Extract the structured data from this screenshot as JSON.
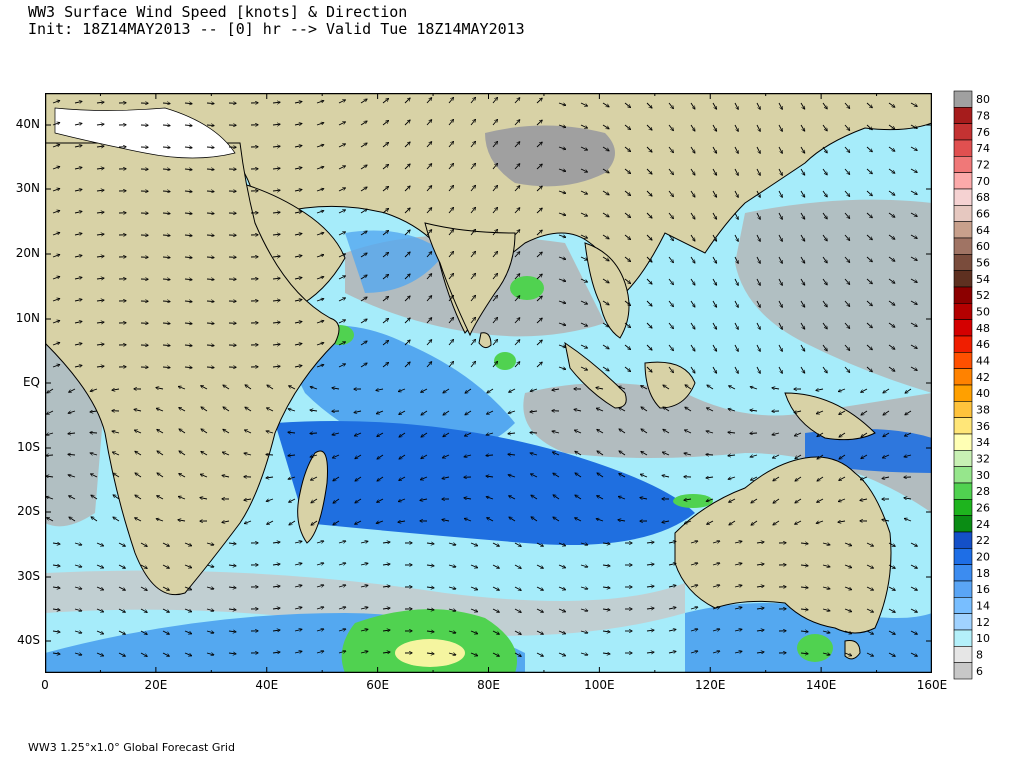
{
  "header": {
    "title_line1": "WW3 Surface Wind Speed [knots] & Direction",
    "title_line2": "Init: 18Z14MAY2013 -- [0] hr --> Valid Tue 18Z14MAY2013"
  },
  "footer": {
    "grid_label": "WW3 1.25°x1.0° Global Forecast Grid"
  },
  "map": {
    "lon_labels": [
      "0",
      "20E",
      "40E",
      "60E",
      "80E",
      "100E",
      "120E",
      "140E",
      "160E"
    ],
    "lat_labels": [
      "40N",
      "30N",
      "20N",
      "10N",
      "EQ",
      "10S",
      "20S",
      "30S",
      "40S"
    ],
    "land_color": "#d8d2a6",
    "ocean_colors": {
      "calm_gray": "#b4b4b4",
      "light_blue": "#a6ecfa",
      "mid_blue": "#54a8f0",
      "deep_blue": "#1f6fe0",
      "green": "#50d250",
      "yellow": "#f5f5a0",
      "plateau_gray": "#a0a0a0"
    }
  },
  "legend": {
    "levels": [
      "80",
      "78",
      "76",
      "74",
      "72",
      "70",
      "68",
      "66",
      "64",
      "60",
      "56",
      "54",
      "52",
      "50",
      "48",
      "46",
      "44",
      "42",
      "40",
      "38",
      "36",
      "34",
      "32",
      "30",
      "28",
      "26",
      "24",
      "22",
      "20",
      "18",
      "16",
      "14",
      "12",
      "10",
      "8",
      "6"
    ],
    "colors": [
      "#a0a0a0",
      "#a61c1c",
      "#c43232",
      "#e05050",
      "#f07878",
      "#fcaaaa",
      "#f5d2d2",
      "#e6c8c0",
      "#c8a08c",
      "#a07464",
      "#7a4c3c",
      "#5e3020",
      "#8c0000",
      "#b40000",
      "#d40000",
      "#f01e00",
      "#ff5000",
      "#ff8200",
      "#ffa000",
      "#ffc33c",
      "#ffe678",
      "#ffffb4",
      "#c8f0b4",
      "#96e68c",
      "#50d250",
      "#1eb41e",
      "#0a8c14",
      "#1450c8",
      "#1e6ee6",
      "#3c8cf0",
      "#5aa5f5",
      "#78beff",
      "#a0d2ff",
      "#b4f0fa",
      "#e6e6e6",
      "#c8c8c8"
    ]
  }
}
